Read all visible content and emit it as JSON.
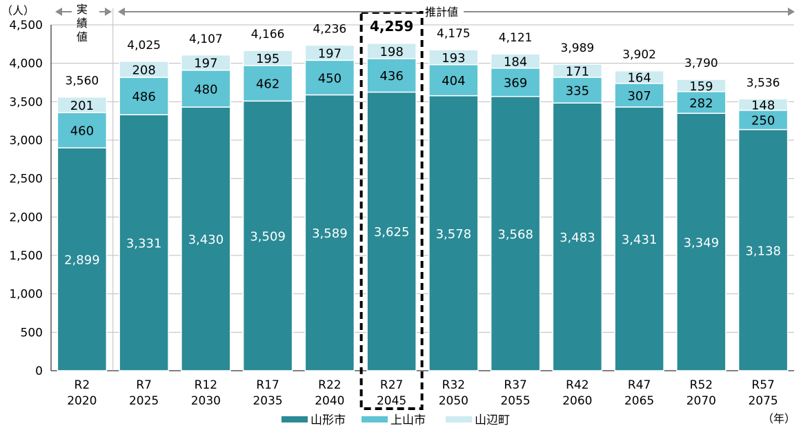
{
  "chart_data": {
    "type": "bar",
    "stacked": true,
    "categories": [
      {
        "era": "R2",
        "year": "2020"
      },
      {
        "era": "R7",
        "year": "2025"
      },
      {
        "era": "R12",
        "year": "2030"
      },
      {
        "era": "R17",
        "year": "2035"
      },
      {
        "era": "R22",
        "year": "2040"
      },
      {
        "era": "R27",
        "year": "2045"
      },
      {
        "era": "R32",
        "year": "2050"
      },
      {
        "era": "R37",
        "year": "2055"
      },
      {
        "era": "R42",
        "year": "2060"
      },
      {
        "era": "R47",
        "year": "2065"
      },
      {
        "era": "R52",
        "year": "2070"
      },
      {
        "era": "R57",
        "year": "2075"
      }
    ],
    "series": [
      {
        "name": "山形市",
        "color": "#2a8a96",
        "label_color": "#ffffff",
        "values": [
          2899,
          3331,
          3430,
          3509,
          3589,
          3625,
          3578,
          3568,
          3483,
          3431,
          3349,
          3138
        ]
      },
      {
        "name": "上山市",
        "color": "#5fc4d4",
        "label_color": "#000000",
        "values": [
          460,
          486,
          480,
          462,
          450,
          436,
          404,
          369,
          335,
          307,
          282,
          250
        ]
      },
      {
        "name": "山辺町",
        "color": "#cdebf1",
        "label_color": "#000000",
        "values": [
          201,
          208,
          197,
          195,
          197,
          198,
          193,
          184,
          171,
          164,
          159,
          148
        ]
      }
    ],
    "totals": [
      "3,560",
      "4,025",
      "4,107",
      "4,166",
      "4,236",
      "4,259",
      "4,175",
      "4,121",
      "3,989",
      "3,902",
      "3,790",
      "3,536"
    ],
    "highlight_index": 5,
    "ylim": [
      0,
      4500
    ],
    "ytick_step": 500,
    "ylabel": "（人）",
    "xlabel": "（年）",
    "grid": true,
    "legend_position": "bottom",
    "period_actual": [
      "実",
      "績",
      "値"
    ],
    "period_forecast": "推計値"
  }
}
